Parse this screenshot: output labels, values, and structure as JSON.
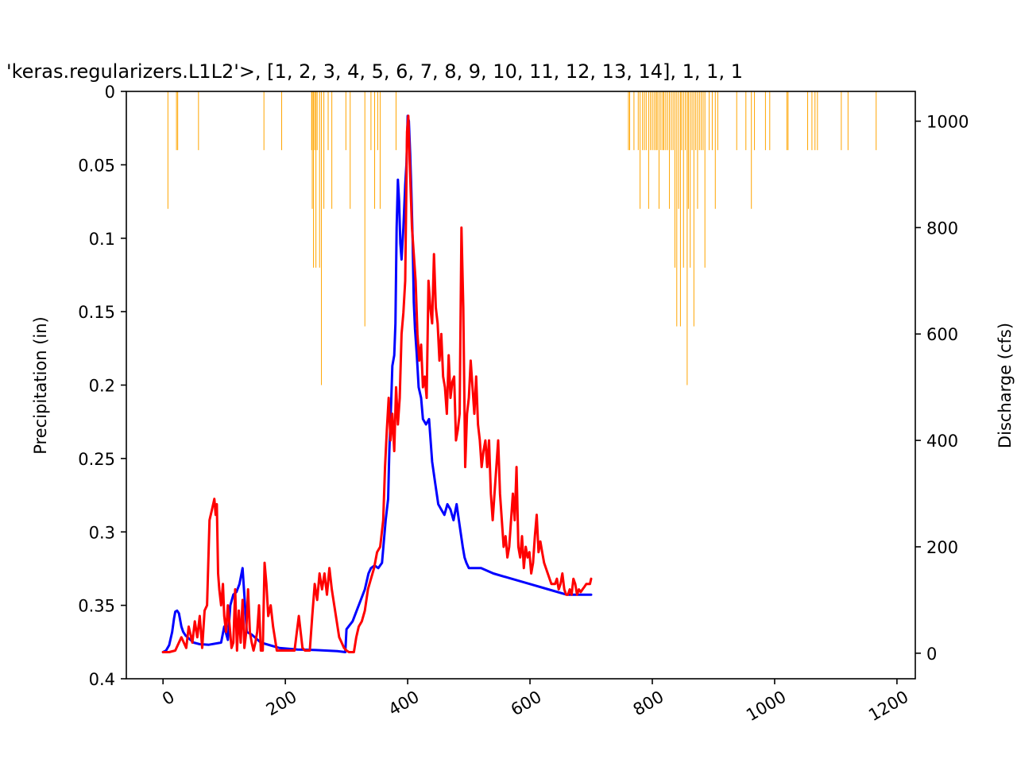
{
  "chart_data": {
    "type": "line",
    "title": "'keras.regularizers.L1L2'>, [1, 2, 3, 4, 5, 6, 7, 8, 9, 10, 11, 12, 13, 14], 1, 1, 1",
    "xlabel": "",
    "y_left_label": "Precipitation (in)",
    "y_right_label": "Discharge (cfs)",
    "xlim": [
      -60,
      1230
    ],
    "y_left_lim": [
      0,
      0.4
    ],
    "y_left_inverted": true,
    "y_right_lim": [
      -48,
      1056
    ],
    "x_ticks": [
      "0",
      "200",
      "400",
      "600",
      "800",
      "1000",
      "1200"
    ],
    "y_left_ticks": [
      "0",
      "0.05",
      "0.1",
      "0.15",
      "0.2",
      "0.25",
      "0.3",
      "0.35",
      "0.4"
    ],
    "y_right_ticks": [
      "0",
      "200",
      "400",
      "600",
      "800",
      "1000"
    ],
    "grid": false,
    "legend": "none",
    "colors": {
      "precipitation": "#ffa500",
      "observed": "#0000ff",
      "predicted": "#ff0000"
    },
    "precipitation": {
      "x": [
        8,
        22,
        24,
        58,
        165,
        194,
        243,
        244,
        246,
        248,
        250,
        252,
        256,
        259,
        263,
        270,
        276,
        299,
        306,
        330,
        340,
        346,
        351,
        355,
        381,
        761,
        763,
        770,
        777,
        780,
        784,
        787,
        790,
        794,
        797,
        800,
        803,
        806,
        808,
        811,
        814,
        817,
        819,
        822,
        825,
        828,
        831,
        834,
        837,
        840,
        843,
        846,
        848,
        851,
        854,
        857,
        859,
        862,
        865,
        868,
        871,
        874,
        877,
        880,
        883,
        886,
        893,
        898,
        903,
        907,
        938,
        953,
        962,
        967,
        985,
        992,
        1020,
        1022,
        1054,
        1061,
        1066,
        1070,
        1109,
        1120,
        1166
      ],
      "values": [
        0.08,
        0.04,
        0.04,
        0.04,
        0.04,
        0.04,
        0.04,
        0.08,
        0.12,
        0.04,
        0.12,
        0.04,
        0.12,
        0.2,
        0.08,
        0.04,
        0.08,
        0.04,
        0.08,
        0.16,
        0.04,
        0.08,
        0.04,
        0.08,
        0.04,
        0.04,
        0.04,
        0.04,
        0.04,
        0.08,
        0.04,
        0.04,
        0.04,
        0.08,
        0.04,
        0.04,
        0.04,
        0.04,
        0.04,
        0.08,
        0.04,
        0.04,
        0.04,
        0.04,
        0.04,
        0.08,
        0.04,
        0.04,
        0.12,
        0.16,
        0.08,
        0.16,
        0.04,
        0.12,
        0.04,
        0.2,
        0.08,
        0.12,
        0.04,
        0.16,
        0.04,
        0.08,
        0.04,
        0.04,
        0.04,
        0.12,
        0.04,
        0.04,
        0.08,
        0.04,
        0.04,
        0.04,
        0.08,
        0.04,
        0.04,
        0.04,
        0.04,
        0.04,
        0.04,
        0.04,
        0.04,
        0.04,
        0.04,
        0.04,
        0.04
      ]
    },
    "series": [
      {
        "key": "observed",
        "x": [
          0,
          5,
          10,
          15,
          18,
          20,
          23,
          26,
          30,
          33,
          37,
          42,
          50,
          60,
          75,
          95,
          100,
          106,
          110,
          115,
          120,
          125,
          130,
          137,
          145,
          160,
          190,
          220,
          250,
          285,
          298,
          300,
          310,
          320,
          330,
          336,
          340,
          346,
          352,
          358,
          364,
          368,
          370,
          373,
          375,
          378,
          380,
          382,
          384,
          386,
          388,
          390,
          393,
          396,
          398,
          400,
          402,
          404,
          406,
          408,
          410,
          412,
          415,
          418,
          422,
          425,
          430,
          435,
          440,
          445,
          450,
          455,
          460,
          465,
          470,
          475,
          480,
          485,
          490,
          493,
          496,
          500,
          520,
          540,
          570,
          600,
          630,
          660,
          690,
          700
        ],
        "values": [
          2,
          5,
          15,
          40,
          65,
          78,
          80,
          75,
          50,
          40,
          33,
          28,
          20,
          17,
          16,
          20,
          50,
          25,
          90,
          110,
          115,
          130,
          160,
          40,
          35,
          20,
          10,
          7,
          6,
          4,
          2,
          45,
          60,
          90,
          120,
          150,
          160,
          165,
          160,
          170,
          250,
          290,
          380,
          470,
          540,
          560,
          620,
          800,
          890,
          850,
          770,
          740,
          800,
          880,
          920,
          1010,
          1000,
          940,
          870,
          780,
          660,
          610,
          560,
          500,
          480,
          440,
          430,
          440,
          360,
          320,
          280,
          270,
          260,
          280,
          270,
          250,
          280,
          240,
          200,
          180,
          170,
          160,
          160,
          150,
          140,
          130,
          120,
          110,
          110,
          110
        ]
      },
      {
        "key": "predicted",
        "x": [
          0,
          10,
          20,
          30,
          38,
          42,
          48,
          52,
          56,
          60,
          64,
          68,
          72,
          76,
          80,
          84,
          86,
          88,
          90,
          92,
          95,
          98,
          100,
          103,
          106,
          109,
          112,
          115,
          118,
          121,
          124,
          127,
          130,
          133,
          136,
          139,
          142,
          145,
          148,
          151,
          154,
          157,
          160,
          163,
          166,
          169,
          172,
          176,
          180,
          186,
          195,
          205,
          215,
          222,
          228,
          232,
          236,
          240,
          244,
          248,
          252,
          256,
          260,
          264,
          268,
          272,
          276,
          280,
          284,
          288,
          292,
          296,
          300,
          304,
          308,
          312,
          316,
          320,
          325,
          330,
          335,
          340,
          345,
          350,
          355,
          360,
          363,
          366,
          369,
          372,
          375,
          378,
          381,
          384,
          387,
          390,
          393,
          396,
          399,
          401,
          404,
          407,
          410,
          413,
          416,
          419,
          422,
          425,
          428,
          431,
          434,
          437,
          440,
          443,
          446,
          449,
          452,
          455,
          458,
          461,
          464,
          467,
          470,
          473,
          476,
          479,
          482,
          485,
          488,
          491,
          494,
          497,
          500,
          503,
          506,
          509,
          512,
          515,
          518,
          521,
          524,
          527,
          530,
          533,
          536,
          539,
          542,
          545,
          548,
          551,
          554,
          557,
          560,
          563,
          566,
          569,
          572,
          575,
          578,
          581,
          584,
          587,
          590,
          593,
          596,
          599,
          602,
          605,
          608,
          611,
          614,
          617,
          620,
          623,
          626,
          629,
          632,
          635,
          638,
          641,
          644,
          647,
          650,
          653,
          656,
          659,
          662,
          665,
          668,
          671,
          674,
          677,
          680,
          683,
          686,
          689,
          692,
          695,
          698,
          700
        ],
        "values": [
          2,
          2,
          5,
          30,
          10,
          50,
          20,
          60,
          30,
          70,
          10,
          80,
          90,
          250,
          270,
          290,
          260,
          280,
          150,
          120,
          90,
          130,
          70,
          40,
          90,
          50,
          10,
          20,
          120,
          5,
          80,
          20,
          100,
          10,
          40,
          120,
          40,
          20,
          5,
          20,
          40,
          90,
          5,
          5,
          170,
          130,
          70,
          90,
          50,
          5,
          5,
          5,
          5,
          70,
          10,
          5,
          5,
          5,
          70,
          130,
          100,
          150,
          120,
          150,
          110,
          160,
          120,
          90,
          60,
          30,
          20,
          10,
          5,
          2,
          2,
          2,
          30,
          50,
          60,
          80,
          120,
          140,
          160,
          190,
          200,
          250,
          350,
          420,
          480,
          400,
          450,
          380,
          500,
          430,
          480,
          600,
          640,
          700,
          980,
          1010,
          900,
          800,
          750,
          700,
          600,
          550,
          580,
          500,
          520,
          480,
          700,
          650,
          620,
          750,
          650,
          620,
          550,
          600,
          520,
          500,
          450,
          560,
          480,
          510,
          520,
          400,
          420,
          450,
          800,
          650,
          350,
          450,
          480,
          550,
          500,
          450,
          520,
          430,
          400,
          350,
          380,
          400,
          350,
          400,
          300,
          250,
          300,
          350,
          400,
          300,
          250,
          200,
          220,
          180,
          200,
          250,
          300,
          250,
          350,
          200,
          180,
          220,
          160,
          200,
          180,
          190,
          150,
          170,
          220,
          260,
          190,
          210,
          190,
          170,
          160,
          150,
          140,
          130,
          130,
          130,
          140,
          120,
          130,
          150,
          120,
          110,
          110,
          120,
          110,
          140,
          130,
          110,
          120,
          115,
          120,
          125,
          130,
          130,
          130,
          140
        ]
      }
    ]
  }
}
